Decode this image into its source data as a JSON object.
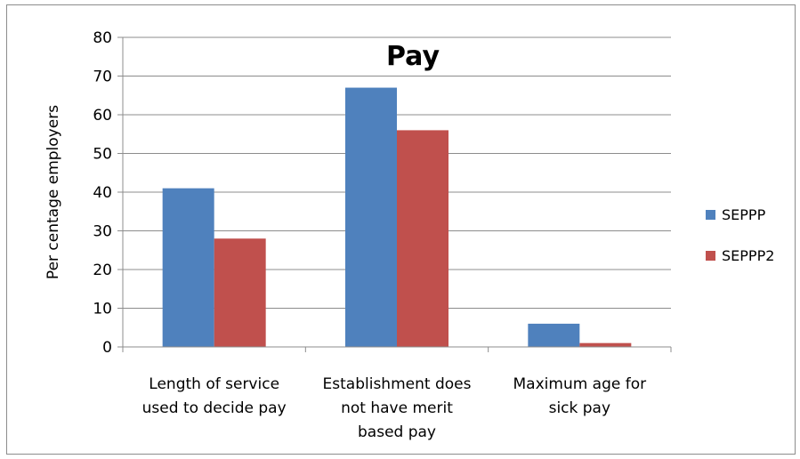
{
  "chart_data": {
    "type": "bar",
    "title": "Pay",
    "ylabel": "Per centage employers",
    "xlabel": "",
    "ylim": [
      0,
      80
    ],
    "ytick_step": 10,
    "grid": true,
    "legend_position": "right",
    "categories": [
      [
        "Length of service",
        "used to decide pay"
      ],
      [
        "Establishment does",
        "not have merit",
        "based pay"
      ],
      [
        "Maximum age for",
        "sick pay"
      ]
    ],
    "series": [
      {
        "name": "SEPPP",
        "color": "#4f81bd",
        "values": [
          41,
          67,
          6
        ]
      },
      {
        "name": "SEPPP2",
        "color": "#c0504d",
        "values": [
          28,
          56,
          1
        ]
      }
    ]
  }
}
